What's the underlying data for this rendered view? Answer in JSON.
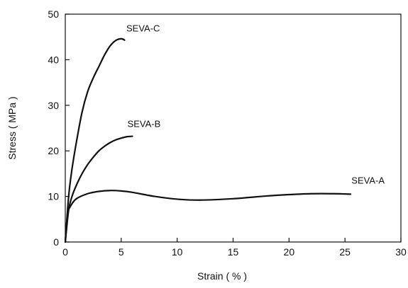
{
  "chart_data": {
    "type": "line",
    "xlabel": "Strain ( % )",
    "ylabel": "Stress ( MPa )",
    "xlim": [
      0,
      30
    ],
    "ylim": [
      0,
      50
    ],
    "xticks": [
      0,
      5,
      10,
      15,
      20,
      25,
      30
    ],
    "yticks": [
      0,
      10,
      20,
      30,
      40,
      50
    ],
    "grid": false,
    "series": [
      {
        "name": "SEVA-A",
        "x": [
          0,
          0.2,
          0.5,
          1,
          2,
          3,
          4,
          5,
          6,
          8,
          10,
          12,
          15,
          18,
          20,
          22,
          24,
          25.5
        ],
        "y": [
          0,
          6,
          8,
          9.5,
          10.6,
          11.1,
          11.3,
          11.2,
          10.9,
          10.0,
          9.4,
          9.2,
          9.5,
          10.1,
          10.4,
          10.6,
          10.6,
          10.5
        ]
      },
      {
        "name": "SEVA-B",
        "x": [
          0,
          0.3,
          0.6,
          1,
          1.5,
          2,
          2.5,
          3,
          3.5,
          4,
          4.5,
          5,
          5.5,
          6
        ],
        "y": [
          0,
          7,
          10,
          12.5,
          15,
          17,
          18.6,
          20,
          21,
          21.8,
          22.4,
          22.8,
          23.1,
          23.2
        ]
      },
      {
        "name": "SEVA-C",
        "x": [
          0,
          0.3,
          0.6,
          1,
          1.5,
          2,
          2.5,
          3,
          3.5,
          4,
          4.5,
          5,
          5.3
        ],
        "y": [
          0,
          10,
          16,
          22,
          28.5,
          33,
          36,
          38.5,
          41,
          43,
          44.2,
          44.6,
          44.3
        ]
      }
    ]
  }
}
